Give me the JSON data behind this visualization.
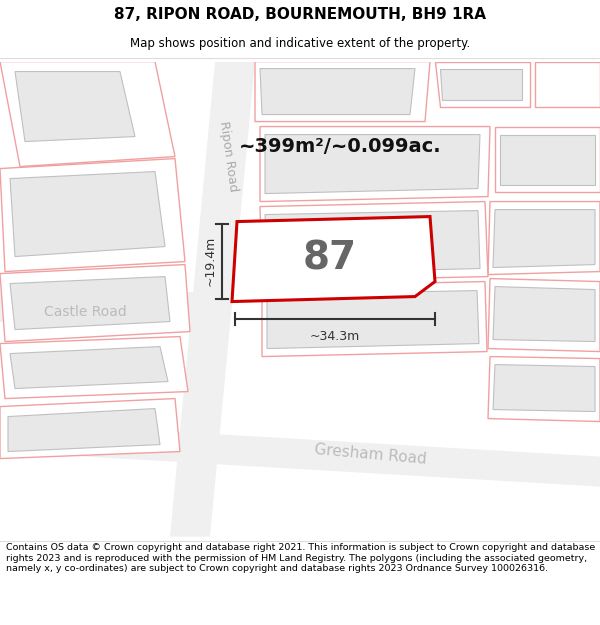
{
  "title": "87, RIPON ROAD, BOURNEMOUTH, BH9 1RA",
  "subtitle": "Map shows position and indicative extent of the property.",
  "footer": "Contains OS data © Crown copyright and database right 2021. This information is subject to Crown copyright and database rights 2023 and is reproduced with the permission of HM Land Registry. The polygons (including the associated geometry, namely x, y co-ordinates) are subject to Crown copyright and database rights 2023 Ordnance Survey 100026316.",
  "area_label": "~399m²/~0.099ac.",
  "house_number": "87",
  "dim1_label": "~19.4m",
  "dim2_label": "~34.3m",
  "road1": "Ripon Road",
  "road2": "Gresham Road",
  "road3": "Castle Road",
  "map_bg": "#ffffff",
  "building_fill": "#e8e8e8",
  "building_edge": "#f0a0a0",
  "plot_fill": "#ffffff",
  "plot_edge": "#cc0000",
  "dim_color": "#333333",
  "road_label_color": "#aaaaaa",
  "area_color": "#111111",
  "title_fontsize": 11,
  "subtitle_fontsize": 8.5
}
